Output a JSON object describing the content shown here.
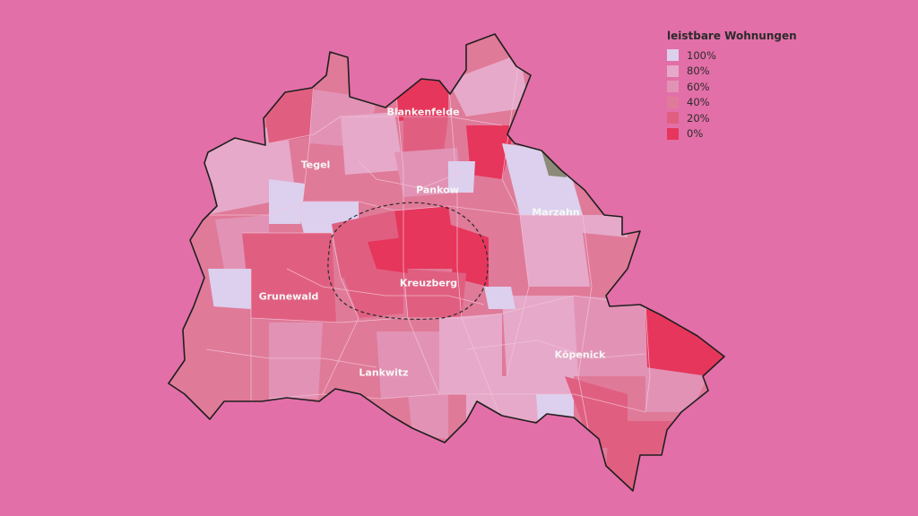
{
  "legend": {
    "title": "leistbare Wohnungen",
    "items": [
      {
        "label": "100%",
        "color": "#dcd0ee"
      },
      {
        "label": "80%",
        "color": "#e6a9c9"
      },
      {
        "label": "60%",
        "color": "#e293b5"
      },
      {
        "label": "40%",
        "color": "#e07a99"
      },
      {
        "label": "20%",
        "color": "#e05f80"
      },
      {
        "label": "0%",
        "color": "#e6365b"
      }
    ]
  },
  "districts": {
    "blankenfelde": "Blankenfelde",
    "tegel": "Tegel",
    "pankow": "Pankow",
    "marzahn": "Marzahn",
    "grunewald": "Grunewald",
    "kreuzberg": "Kreuzberg",
    "koepenick": "Köpenick",
    "lankwitz": "Lankwitz"
  },
  "colors": {
    "background": "#e36fa8",
    "no_data": "#8c8a78",
    "outline": "#1f1f1f"
  }
}
